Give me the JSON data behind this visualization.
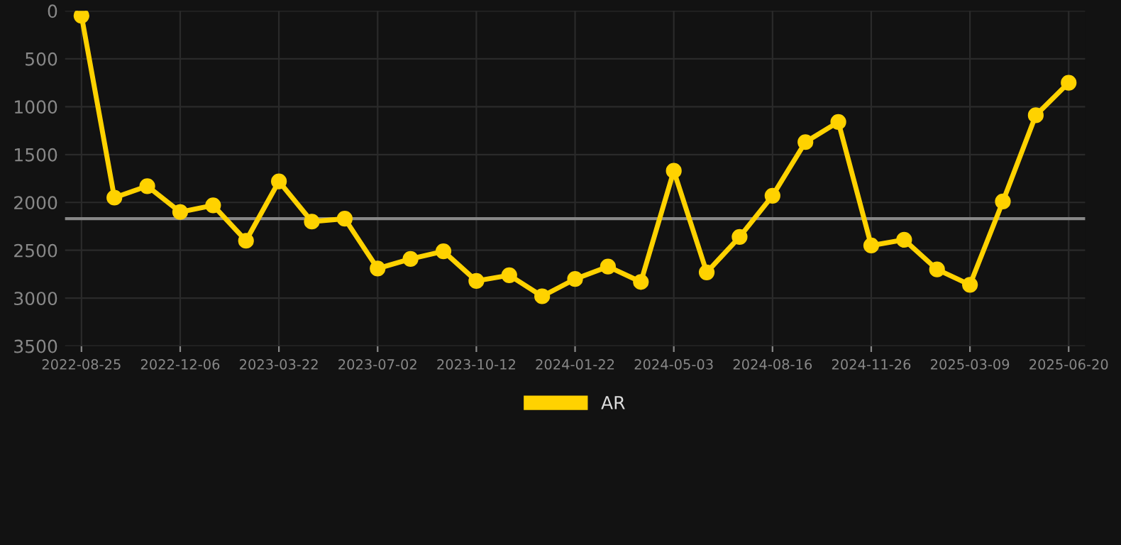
{
  "chart_data": {
    "type": "line",
    "categories": [
      "2022-08-25",
      null,
      null,
      "2022-12-06",
      null,
      null,
      "2023-03-22",
      null,
      null,
      "2023-07-02",
      null,
      null,
      "2023-10-12",
      null,
      null,
      "2024-01-22",
      null,
      null,
      "2024-05-03",
      null,
      null,
      "2024-08-16",
      null,
      null,
      "2024-11-26",
      null,
      null,
      "2025-03-09",
      null,
      null,
      "2025-06-20"
    ],
    "series": [
      {
        "name": "AR",
        "color": "#ffd200",
        "values": [
          50,
          1950,
          1830,
          2100,
          2030,
          2400,
          1780,
          2200,
          2170,
          2690,
          2590,
          2510,
          2820,
          2760,
          2980,
          2800,
          2670,
          2830,
          1670,
          2730,
          2360,
          1930,
          1370,
          1160,
          2450,
          2390,
          2700,
          2860,
          1990,
          1090,
          750
        ]
      }
    ],
    "ylim": [
      3500,
      0
    ],
    "yticks": [
      0,
      500,
      1000,
      1500,
      2000,
      2500,
      3000,
      3500
    ],
    "ref_lines": [
      {
        "axis": "y",
        "value": 2170,
        "color": "#888888"
      }
    ],
    "grid": true,
    "legend": "bottom",
    "marker": "circle",
    "line_style": "solid"
  }
}
